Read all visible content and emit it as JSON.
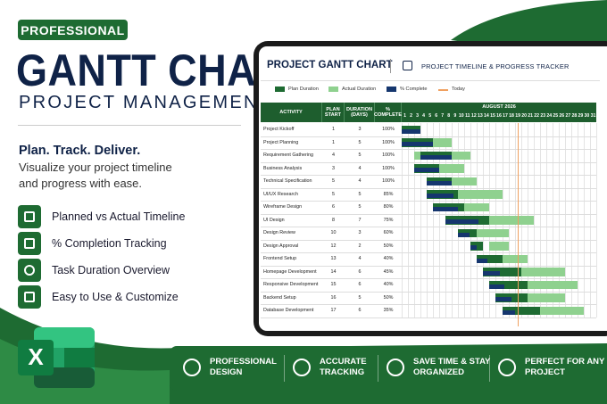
{
  "badge": "PROFESSIONAL",
  "title": "GANTT CHART",
  "subtitle": "PROJECT MANAGEMENT",
  "tagline": "Plan. Track. Deliver.",
  "description": "Visualize your project timeline and progress with ease.",
  "features": [
    "Planned vs Actual Timeline",
    "% Completion Tracking",
    "Task Duration Overview",
    "Easy to Use & Customize"
  ],
  "sheet": {
    "title": "PROJECT GANTT CHART",
    "note": "PROJECT TIMELINE & PROGRESS TRACKER",
    "legend": [
      {
        "name": "Plan Duration",
        "color": "#1e6b32"
      },
      {
        "name": "Actual Duration",
        "color": "#8fd18f"
      },
      {
        "name": "% Complete",
        "color": "#15366e"
      },
      {
        "name": "Today",
        "color": "#f0a060"
      }
    ],
    "columns": [
      "ACTIVITY",
      "PLAN START",
      "DURATION (DAYS)",
      "% COMPLETE"
    ],
    "month": "AUGUST 2026",
    "days": [
      1,
      2,
      3,
      4,
      5,
      6,
      7,
      8,
      9,
      10,
      11,
      12,
      13,
      14,
      15,
      16,
      17,
      18,
      19,
      20,
      21,
      22,
      23,
      24,
      25,
      26,
      27,
      28,
      29,
      30,
      31
    ],
    "today": 19,
    "rows": [
      {
        "activity": "Project Kickoff",
        "plan_start": 1,
        "duration": 3,
        "complete": {
          "value": 100,
          "label": "100%"
        },
        "actual_start": 1,
        "actual_duration": 3
      },
      {
        "activity": "Project Planning",
        "plan_start": 1,
        "duration": 5,
        "complete": {
          "value": 100,
          "label": "100%"
        },
        "actual_start": 1,
        "actual_duration": 8
      },
      {
        "activity": "Requirement Gathering",
        "plan_start": 4,
        "duration": 5,
        "complete": {
          "value": 100,
          "label": "100%"
        },
        "actual_start": 3,
        "actual_duration": 9
      },
      {
        "activity": "Business Analysis",
        "plan_start": 3,
        "duration": 4,
        "complete": {
          "value": 100,
          "label": "100%"
        },
        "actual_start": 4,
        "actual_duration": 7
      },
      {
        "activity": "Technical Specification",
        "plan_start": 5,
        "duration": 4,
        "complete": {
          "value": 100,
          "label": "100%"
        },
        "actual_start": 7,
        "actual_duration": 6
      },
      {
        "activity": "UI/UX Research",
        "plan_start": 5,
        "duration": 5,
        "complete": {
          "value": 85,
          "label": "85%"
        },
        "actual_start": 7,
        "actual_duration": 10
      },
      {
        "activity": "Wireframe Design",
        "plan_start": 6,
        "duration": 5,
        "complete": {
          "value": 80,
          "label": "80%"
        },
        "actual_start": 8,
        "actual_duration": 7
      },
      {
        "activity": "UI Design",
        "plan_start": 8,
        "duration": 7,
        "complete": {
          "value": 75,
          "label": "75%"
        },
        "actual_start": 10,
        "actual_duration": 12
      },
      {
        "activity": "Design Review",
        "plan_start": 10,
        "duration": 3,
        "complete": {
          "value": 60,
          "label": "60%"
        },
        "actual_start": 13,
        "actual_duration": 5
      },
      {
        "activity": "Design Approval",
        "plan_start": 12,
        "duration": 2,
        "complete": {
          "value": 50,
          "label": "50%"
        },
        "actual_start": 15,
        "actual_duration": 3
      },
      {
        "activity": "Frontend Setup",
        "plan_start": 13,
        "duration": 4,
        "complete": {
          "value": 40,
          "label": "40%"
        },
        "actual_start": 16,
        "actual_duration": 5
      },
      {
        "activity": "Homepage Development",
        "plan_start": 14,
        "duration": 6,
        "complete": {
          "value": 45,
          "label": "45%"
        },
        "actual_start": 17,
        "actual_duration": 10
      },
      {
        "activity": "Responsive Development",
        "plan_start": 15,
        "duration": 6,
        "complete": {
          "value": 40,
          "label": "40%"
        },
        "actual_start": 18,
        "actual_duration": 11
      },
      {
        "activity": "Backend Setup",
        "plan_start": 16,
        "duration": 5,
        "complete": {
          "value": 50,
          "label": "50%"
        },
        "actual_start": 19,
        "actual_duration": 8
      },
      {
        "activity": "Database Development",
        "plan_start": 17,
        "duration": 6,
        "complete": {
          "value": 35,
          "label": "35%"
        },
        "actual_start": 20,
        "actual_duration": 10
      }
    ]
  },
  "benefits": [
    "PROFESSIONAL DESIGN",
    "ACCURATE TRACKING",
    "SAVE TIME & STAY ORGANIZED",
    "PERFECT FOR ANY PROJECT"
  ]
}
